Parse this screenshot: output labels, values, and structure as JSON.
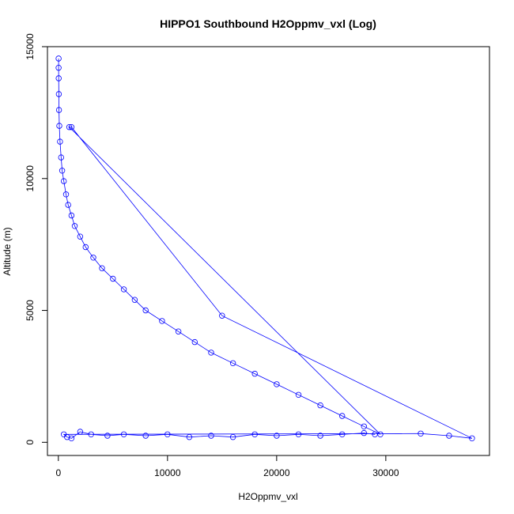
{
  "chart_data": {
    "type": "scatter",
    "title": "HIPPO1 Southbound H2Oppmv_vxl (Log)",
    "xlabel": "H2Oppmv_vxl",
    "ylabel": "Altitude (m)",
    "xlim": [
      -1000,
      39500
    ],
    "ylim": [
      -500,
      15000
    ],
    "x_ticks": [
      0,
      10000,
      20000,
      30000
    ],
    "y_ticks": [
      0,
      5000,
      10000,
      15000
    ],
    "point_style": "open-circle",
    "line_overlay": true,
    "color": "#0000ff",
    "series": [
      {
        "points": [
          [
            20,
            14550
          ],
          [
            25,
            14200
          ],
          [
            30,
            13800
          ],
          [
            40,
            13200
          ],
          [
            60,
            12600
          ],
          [
            90,
            12000
          ],
          [
            150,
            11400
          ],
          [
            250,
            10800
          ],
          [
            350,
            10300
          ],
          [
            500,
            9900
          ],
          [
            700,
            9400
          ],
          [
            900,
            9000
          ],
          [
            1200,
            8600
          ],
          [
            1500,
            8200
          ],
          [
            2000,
            7800
          ],
          [
            2500,
            7400
          ],
          [
            3200,
            7000
          ],
          [
            4000,
            6600
          ],
          [
            5000,
            6200
          ],
          [
            6000,
            5800
          ],
          [
            7000,
            5400
          ],
          [
            8000,
            5000
          ],
          [
            9500,
            4600
          ],
          [
            11000,
            4200
          ],
          [
            12500,
            3800
          ],
          [
            14000,
            3400
          ],
          [
            16000,
            3000
          ],
          [
            18000,
            2600
          ],
          [
            20000,
            2200
          ],
          [
            22000,
            1800
          ],
          [
            24000,
            1400
          ],
          [
            26000,
            1000
          ],
          [
            28000,
            600
          ],
          [
            29500,
            300
          ],
          [
            1000,
            11950
          ],
          [
            1200,
            11950
          ],
          [
            15000,
            4800
          ],
          [
            37900,
            150
          ],
          [
            35800,
            250
          ],
          [
            33200,
            330
          ],
          [
            500,
            300
          ],
          [
            800,
            200
          ],
          [
            1200,
            150
          ],
          [
            2000,
            400
          ],
          [
            3000,
            300
          ],
          [
            4500,
            250
          ],
          [
            6000,
            300
          ],
          [
            8000,
            250
          ],
          [
            10000,
            300
          ],
          [
            12000,
            200
          ],
          [
            14000,
            250
          ],
          [
            16000,
            200
          ],
          [
            18000,
            300
          ],
          [
            20000,
            250
          ],
          [
            22000,
            300
          ],
          [
            24000,
            250
          ],
          [
            26000,
            300
          ],
          [
            28000,
            350
          ],
          [
            29000,
            300
          ]
        ]
      }
    ]
  }
}
